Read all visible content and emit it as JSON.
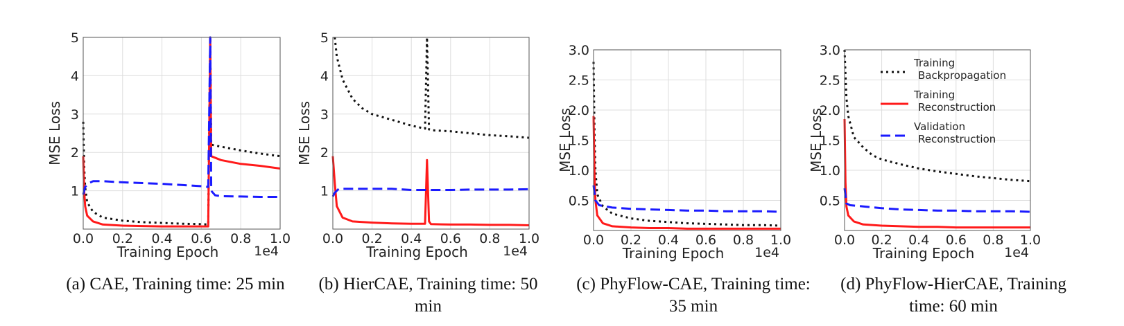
{
  "colors": {
    "train_bp": "#111111",
    "train_rec": "#ff1a1a",
    "val_rec": "#1a1aff",
    "grid": "#dddddd"
  },
  "legend": {
    "items": [
      {
        "line1": "Training",
        "line2": "Backpropagation",
        "color": "#111111",
        "style": "dotted"
      },
      {
        "line1": "Training",
        "line2": "Reconstruction",
        "color": "#ff1a1a",
        "style": "solid"
      },
      {
        "line1": "Validation",
        "line2": "Reconstruction",
        "color": "#1a1aff",
        "style": "dashed"
      }
    ]
  },
  "chart_data": [
    {
      "type": "line",
      "caption": "(a) CAE, Training time: 25 min",
      "xlabel": "Training Epoch",
      "ylabel": "MSE Loss",
      "x_multiplier": "1e4",
      "xlim": [
        0,
        1.0
      ],
      "ylim": [
        0,
        5
      ],
      "xticks": [
        "0.0",
        "0.2",
        "0.4",
        "0.6",
        "0.8",
        "1.0"
      ],
      "yticks": [
        "1",
        "2",
        "3",
        "4",
        "5"
      ],
      "grid": true,
      "series": [
        {
          "name": "Training Backpropagation",
          "style": "dotted",
          "color": "#111111",
          "x": [
            0,
            0.005,
            0.01,
            0.02,
            0.05,
            0.1,
            0.2,
            0.3,
            0.4,
            0.5,
            0.6,
            0.635,
            0.645,
            0.65,
            0.7,
            0.8,
            0.9,
            1.0
          ],
          "y": [
            2.8,
            1.6,
            1.1,
            0.7,
            0.45,
            0.3,
            0.22,
            0.18,
            0.16,
            0.14,
            0.13,
            0.12,
            5.0,
            2.2,
            2.15,
            2.05,
            1.97,
            1.9
          ]
        },
        {
          "name": "Training Reconstruction",
          "style": "solid",
          "color": "#ff1a1a",
          "x": [
            0,
            0.005,
            0.01,
            0.02,
            0.05,
            0.1,
            0.2,
            0.3,
            0.4,
            0.5,
            0.6,
            0.635,
            0.645,
            0.65,
            0.7,
            0.8,
            0.9,
            1.0
          ],
          "y": [
            1.9,
            1.0,
            0.6,
            0.35,
            0.2,
            0.12,
            0.09,
            0.08,
            0.07,
            0.07,
            0.07,
            0.07,
            5.0,
            1.9,
            1.8,
            1.7,
            1.65,
            1.58
          ]
        },
        {
          "name": "Validation Reconstruction",
          "style": "dashed",
          "color": "#1a1aff",
          "x": [
            0,
            0.01,
            0.03,
            0.05,
            0.1,
            0.2,
            0.3,
            0.4,
            0.5,
            0.6,
            0.635,
            0.645,
            0.65,
            0.67,
            0.7,
            0.8,
            0.9,
            1.0
          ],
          "y": [
            0.9,
            1.1,
            1.2,
            1.25,
            1.25,
            1.22,
            1.2,
            1.18,
            1.15,
            1.12,
            1.1,
            5.0,
            1.0,
            0.88,
            0.86,
            0.85,
            0.84,
            0.84
          ]
        }
      ]
    },
    {
      "type": "line",
      "caption": "(b) HierCAE, Training time: 50 min",
      "xlabel": "Training Epoch",
      "ylabel": "MSE Loss",
      "x_multiplier": "1e4",
      "xlim": [
        0,
        1.0
      ],
      "ylim": [
        0,
        5
      ],
      "xticks": [
        "0.0",
        "0.2",
        "0.4",
        "0.6",
        "0.8",
        "1.0"
      ],
      "yticks": [
        "1",
        "2",
        "3",
        "4",
        "5"
      ],
      "grid": true,
      "series": [
        {
          "name": "Training Backpropagation",
          "style": "dotted",
          "color": "#111111",
          "x": [
            0.01,
            0.02,
            0.05,
            0.1,
            0.15,
            0.2,
            0.3,
            0.4,
            0.47,
            0.48,
            0.49,
            0.5,
            0.6,
            0.7,
            0.8,
            0.9,
            1.0
          ],
          "y": [
            5.0,
            4.5,
            3.9,
            3.4,
            3.15,
            3.0,
            2.85,
            2.7,
            2.62,
            5.0,
            2.6,
            2.58,
            2.55,
            2.5,
            2.45,
            2.42,
            2.38
          ]
        },
        {
          "name": "Training Reconstruction",
          "style": "solid",
          "color": "#ff1a1a",
          "x": [
            0,
            0.01,
            0.02,
            0.05,
            0.1,
            0.2,
            0.3,
            0.4,
            0.47,
            0.48,
            0.49,
            0.5,
            0.6,
            0.7,
            0.8,
            0.9,
            1.0
          ],
          "y": [
            1.9,
            1.2,
            0.6,
            0.3,
            0.2,
            0.17,
            0.15,
            0.14,
            0.14,
            1.8,
            0.2,
            0.13,
            0.12,
            0.12,
            0.11,
            0.11,
            0.1
          ]
        },
        {
          "name": "Validation Reconstruction",
          "style": "dashed",
          "color": "#1a1aff",
          "x": [
            0,
            0.01,
            0.03,
            0.1,
            0.2,
            0.3,
            0.4,
            0.5,
            0.6,
            0.7,
            0.8,
            0.9,
            1.0
          ],
          "y": [
            0.85,
            0.95,
            1.05,
            1.05,
            1.05,
            1.05,
            1.02,
            1.02,
            1.02,
            1.03,
            1.03,
            1.03,
            1.04
          ]
        }
      ]
    },
    {
      "type": "line",
      "caption": "(c) PhyFlow-CAE, Training time: 35 min",
      "xlabel": "Training Epoch",
      "ylabel": "MSE Loss",
      "x_multiplier": "1e4",
      "xlim": [
        0,
        1.0
      ],
      "ylim": [
        0,
        3.0
      ],
      "xticks": [
        "0.0",
        "0.2",
        "0.4",
        "0.6",
        "0.8",
        "1.0"
      ],
      "yticks": [
        "0.5",
        "1.0",
        "1.5",
        "2.0",
        "2.5",
        "3.0"
      ],
      "grid": true,
      "series": [
        {
          "name": "Training Backpropagation",
          "style": "dotted",
          "color": "#111111",
          "x": [
            0,
            0.005,
            0.01,
            0.02,
            0.05,
            0.1,
            0.2,
            0.3,
            0.4,
            0.5,
            0.6,
            0.7,
            0.8,
            0.9,
            1.0
          ],
          "y": [
            2.8,
            1.6,
            1.0,
            0.6,
            0.4,
            0.28,
            0.2,
            0.16,
            0.14,
            0.12,
            0.11,
            0.1,
            0.09,
            0.09,
            0.08
          ]
        },
        {
          "name": "Training Reconstruction",
          "style": "solid",
          "color": "#ff1a1a",
          "x": [
            0,
            0.005,
            0.01,
            0.02,
            0.05,
            0.1,
            0.2,
            0.3,
            0.4,
            0.5,
            0.6,
            0.7,
            0.8,
            0.9,
            1.0
          ],
          "y": [
            1.9,
            0.9,
            0.5,
            0.25,
            0.12,
            0.07,
            0.05,
            0.04,
            0.04,
            0.03,
            0.03,
            0.03,
            0.03,
            0.03,
            0.03
          ]
        },
        {
          "name": "Validation Reconstruction",
          "style": "dashed",
          "color": "#1a1aff",
          "x": [
            0,
            0.01,
            0.03,
            0.1,
            0.2,
            0.3,
            0.4,
            0.5,
            0.6,
            0.7,
            0.8,
            0.9,
            1.0
          ],
          "y": [
            0.75,
            0.5,
            0.42,
            0.38,
            0.36,
            0.35,
            0.34,
            0.33,
            0.33,
            0.32,
            0.32,
            0.32,
            0.31
          ]
        }
      ]
    },
    {
      "type": "line",
      "caption": "(d) PhyFlow-HierCAE, Training time: 60 min",
      "xlabel": "Training Epoch",
      "ylabel": "MSE Loss",
      "x_multiplier": "1e4",
      "xlim": [
        0,
        1.0
      ],
      "ylim": [
        0,
        3.0
      ],
      "xticks": [
        "0.0",
        "0.2",
        "0.4",
        "0.6",
        "0.8",
        "1.0"
      ],
      "yticks": [
        "0.5",
        "1.0",
        "1.5",
        "2.0",
        "2.5",
        "3.0"
      ],
      "grid": true,
      "legend_position": "upper-right",
      "series": [
        {
          "name": "Training Backpropagation",
          "style": "dotted",
          "color": "#111111",
          "x": [
            0,
            0.005,
            0.01,
            0.02,
            0.05,
            0.08,
            0.1,
            0.15,
            0.2,
            0.3,
            0.4,
            0.5,
            0.6,
            0.7,
            0.8,
            0.9,
            1.0
          ],
          "y": [
            3.0,
            2.6,
            2.2,
            1.9,
            1.55,
            1.45,
            1.38,
            1.25,
            1.18,
            1.1,
            1.03,
            0.98,
            0.94,
            0.9,
            0.87,
            0.84,
            0.82
          ]
        },
        {
          "name": "Training Reconstruction",
          "style": "solid",
          "color": "#ff1a1a",
          "x": [
            0,
            0.005,
            0.01,
            0.02,
            0.05,
            0.1,
            0.2,
            0.3,
            0.4,
            0.5,
            0.6,
            0.7,
            0.8,
            0.9,
            1.0
          ],
          "y": [
            1.85,
            0.8,
            0.4,
            0.25,
            0.15,
            0.1,
            0.08,
            0.07,
            0.06,
            0.06,
            0.05,
            0.05,
            0.05,
            0.05,
            0.05
          ]
        },
        {
          "name": "Validation Reconstruction",
          "style": "dashed",
          "color": "#1a1aff",
          "x": [
            0,
            0.01,
            0.03,
            0.1,
            0.2,
            0.3,
            0.4,
            0.5,
            0.6,
            0.7,
            0.8,
            0.9,
            1.0
          ],
          "y": [
            0.7,
            0.45,
            0.42,
            0.4,
            0.37,
            0.35,
            0.34,
            0.33,
            0.33,
            0.32,
            0.32,
            0.32,
            0.31
          ]
        }
      ]
    }
  ]
}
